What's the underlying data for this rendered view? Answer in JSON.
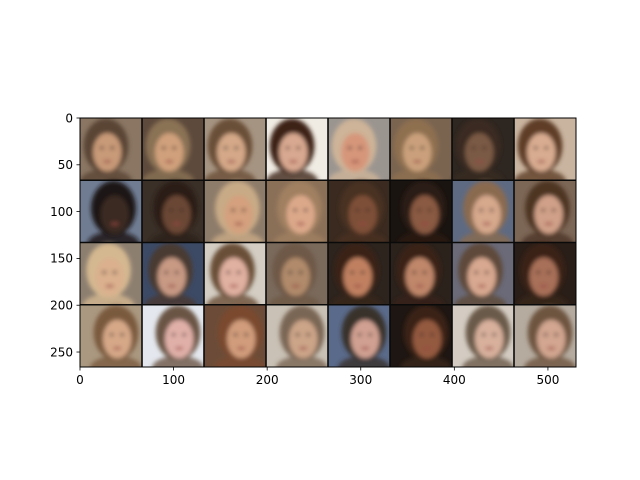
{
  "figure": {
    "x_axis": {
      "range": [
        0,
        530
      ],
      "ticks": [
        0,
        100,
        200,
        300,
        400,
        500
      ]
    },
    "y_axis": {
      "range": [
        0,
        266
      ],
      "inverted": true,
      "ticks": [
        0,
        50,
        100,
        150,
        200,
        250
      ]
    },
    "grid": {
      "rows": 4,
      "cols": 8,
      "content": "generated face thumbnails"
    },
    "tiles": [
      [
        "#8a7663",
        "#5e4a3c",
        "#a69482",
        "#f0ece4",
        "#9b9590",
        "#7a6450",
        "#2e2620",
        "#c9b4a0"
      ],
      [
        "#6f7c92",
        "#3a3028",
        "#8e7c6a",
        "#8b7058",
        "#3a2a20",
        "#1a1410",
        "#5e6a82",
        "#7c6656"
      ],
      [
        "#8d7f70",
        "#3c4a66",
        "#d3cdc3",
        "#7a6a5c",
        "#2d241e",
        "#2b221c",
        "#6a6a78",
        "#2a1e18"
      ],
      [
        "#aa9880",
        "#e4e8ee",
        "#6c4c38",
        "#c9c1b5",
        "#5a6a8a",
        "#1e1612",
        "#d4ccc2",
        "#b5ab9f"
      ]
    ],
    "skin": [
      [
        "#c89a78",
        "#d0a07c",
        "#d4a888",
        "#d8a890",
        "#d6967a",
        "#caa07c",
        "#7a5a44",
        "#d8ac90"
      ],
      [
        "#3a2a22",
        "#6a4634",
        "#d4a07e",
        "#dca88a",
        "#7e5038",
        "#8a5a42",
        "#d6a88c",
        "#d0a088"
      ],
      [
        "#dab08e",
        "#c89a84",
        "#e0b0a0",
        "#b08a6a",
        "#c08060",
        "#c0876a",
        "#d8a890",
        "#a87058"
      ],
      [
        "#d6a888",
        "#e0b0a8",
        "#d09c7c",
        "#cca488",
        "#d0a092",
        "#945a40",
        "#d8b09c",
        "#d2a690"
      ]
    ],
    "hair": [
      [
        "#5a4434",
        "#8a7254",
        "#6a5038",
        "#3e2418",
        "#ceb498",
        "#8e7050",
        "#3a2a20",
        "#5e3e28"
      ],
      [
        "#1a1414",
        "#2a1e16",
        "#c8aa86",
        "#a08060",
        "#4a3020",
        "#2a1a14",
        "#8a6a50",
        "#4e3424"
      ],
      [
        "#d4b890",
        "#4a3a30",
        "#6a5038",
        "#6e5846",
        "#3a2418",
        "#3a2218",
        "#5e4a3a",
        "#3a2418"
      ],
      [
        "#7a5a3e",
        "#6a5444",
        "#7a4a2e",
        "#7a6654",
        "#38302c",
        "#3a2418",
        "#6a5a4a",
        "#6e5440"
      ]
    ]
  }
}
